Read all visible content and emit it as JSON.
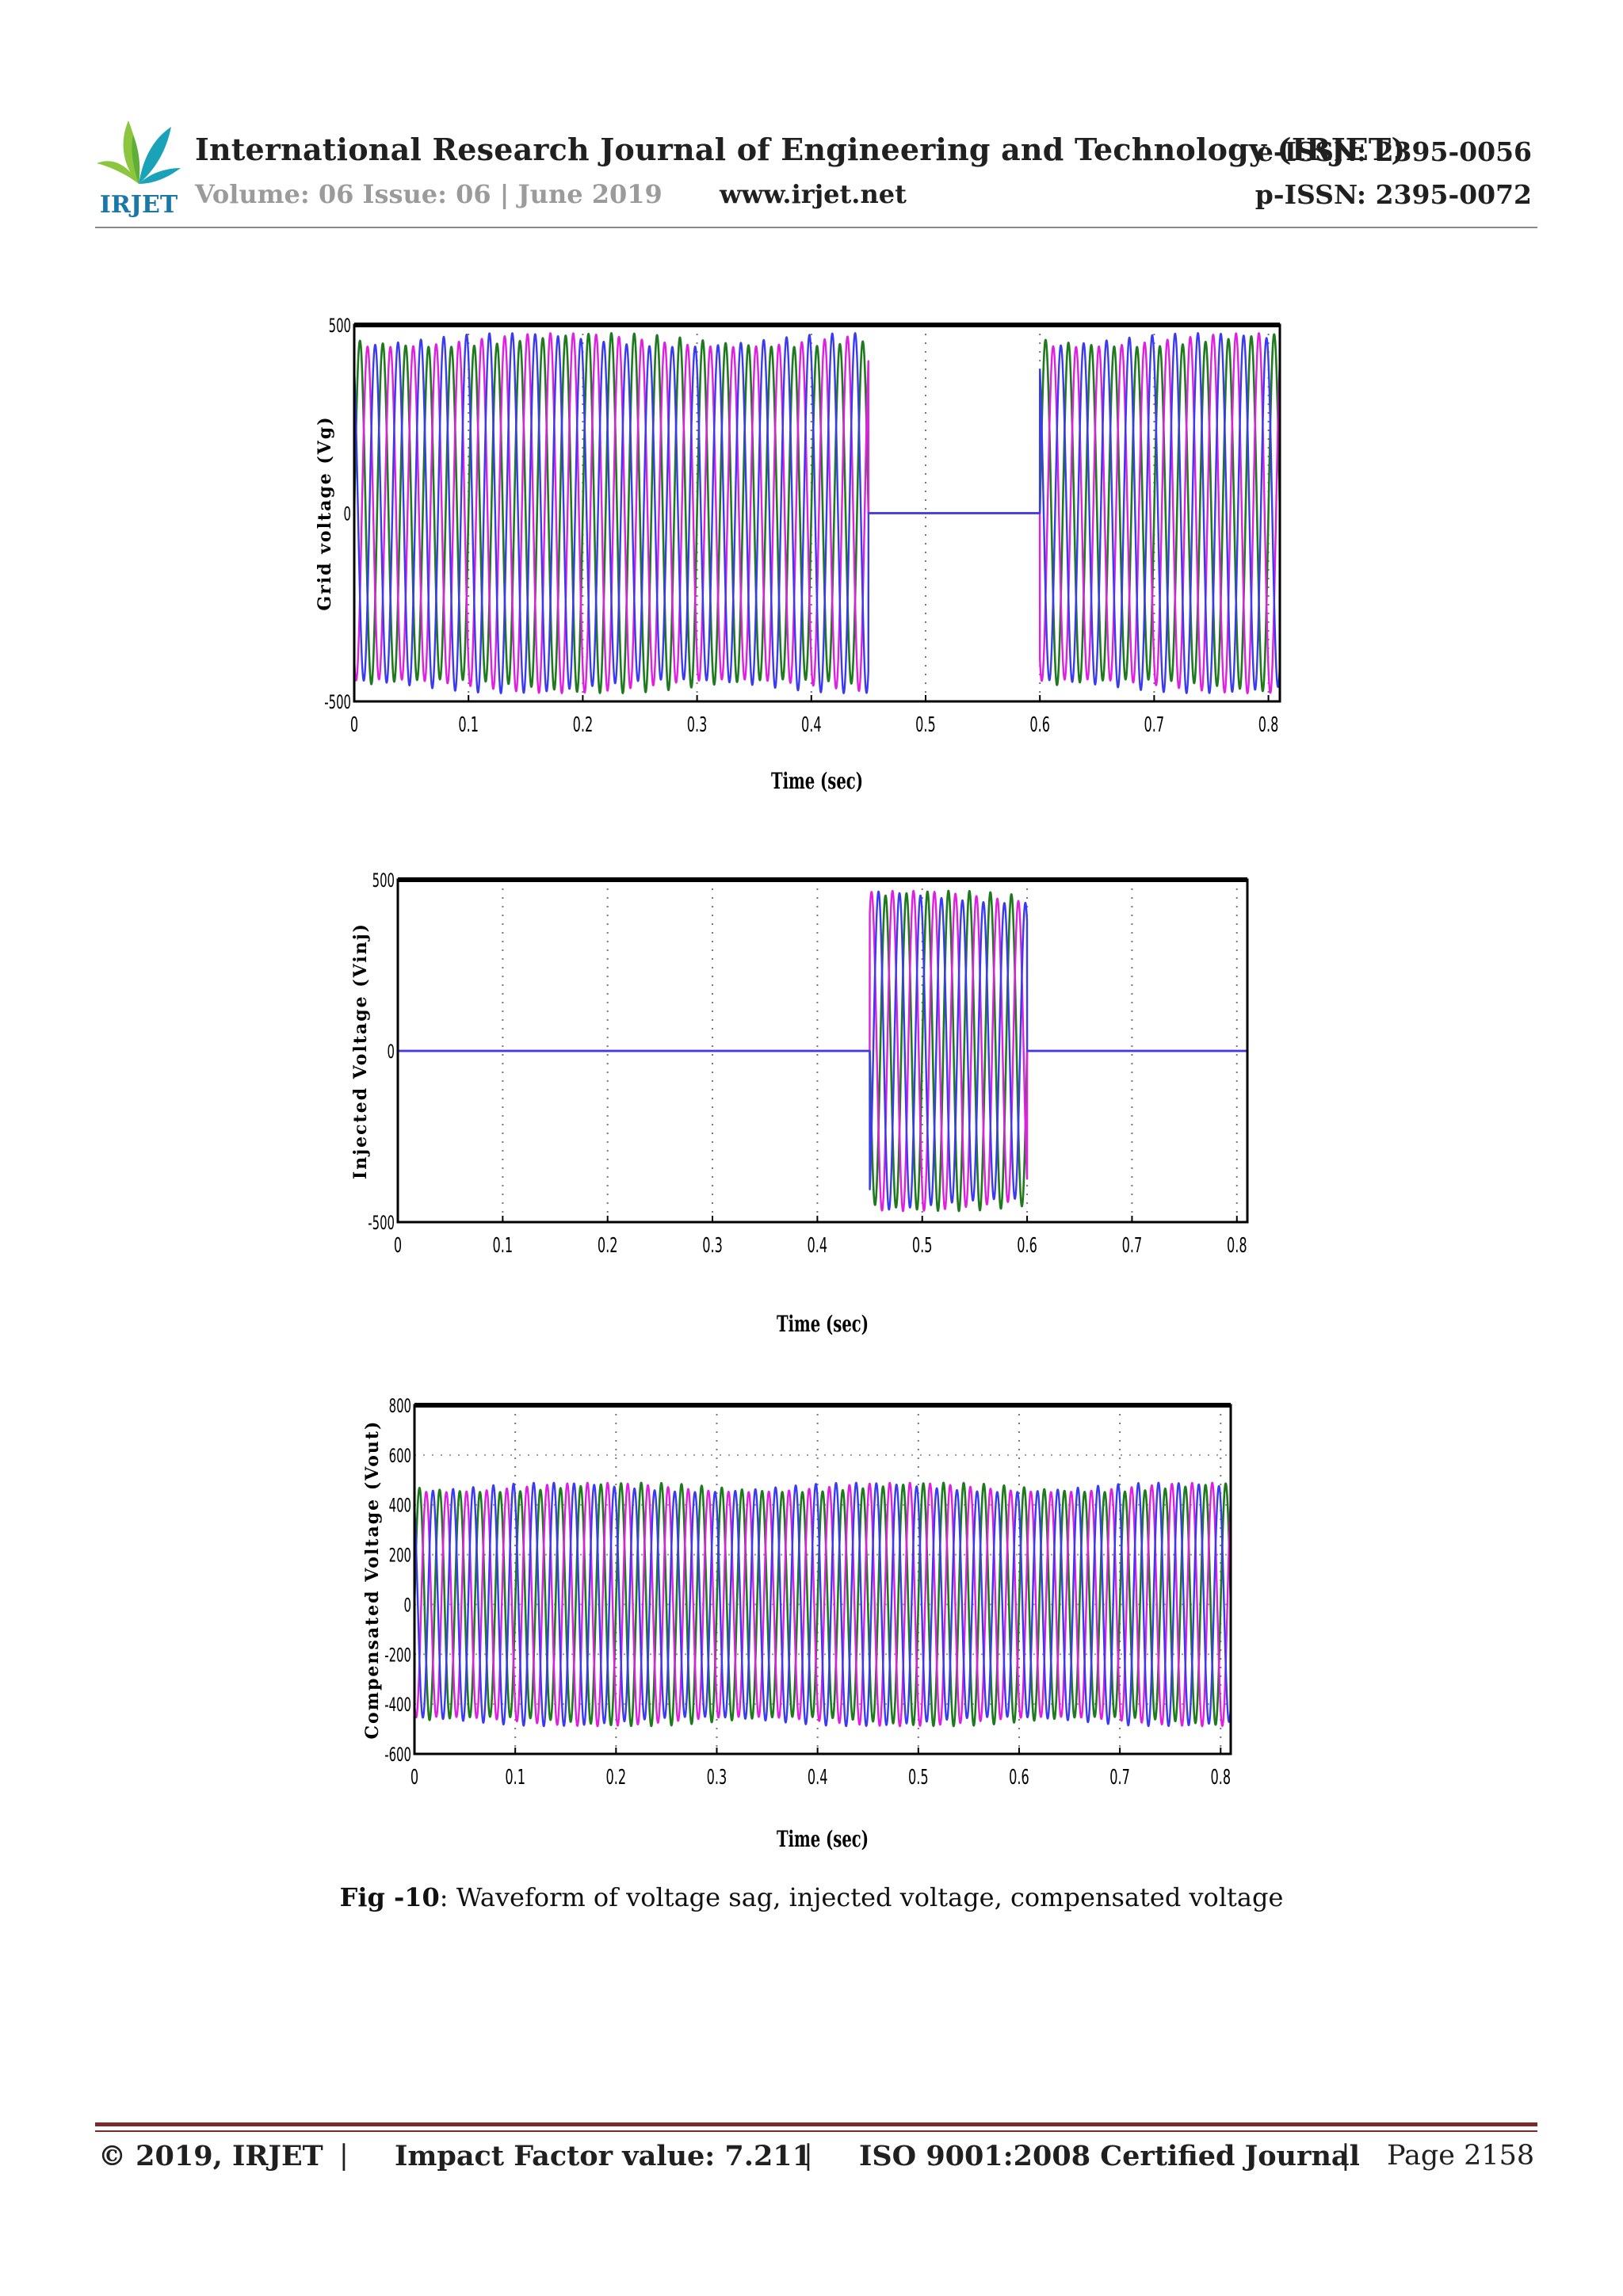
{
  "header": {
    "journal_title": "International Research Journal of Engineering and Technology (IRJET)",
    "volume_line": "Volume: 06 Issue: 06 | June 2019",
    "website": "www.irjet.net",
    "e_issn": "e-ISSN: 2395-0056",
    "p_issn": "p-ISSN: 2395-0072",
    "logo_text": "IRJET",
    "logo_colors": {
      "leaf_green": "#8cc63f",
      "leaf_teal": "#1aa3b8",
      "text": "#1a78a8"
    }
  },
  "chart_data": [
    {
      "type": "line",
      "ylabel": "Grid voltage (Vg)",
      "xlabel": "Time (sec)",
      "xlim": [
        0,
        0.81
      ],
      "ylim": [
        -500,
        500
      ],
      "xticks": [
        "0",
        "0.1",
        "0.2",
        "0.3",
        "0.4",
        "0.5",
        "0.6",
        "0.7",
        "0.8"
      ],
      "yticks": [
        "500",
        "0",
        "-500"
      ],
      "grid": "vertical dotted",
      "frequency_hz": 50,
      "series": [
        {
          "amplitude": 460,
          "segments": [
            [
              0,
              0.45,
              1
            ],
            [
              0.45,
              0.6,
              0
            ],
            [
              0.6,
              0.81,
              1
            ]
          ],
          "color": "#1f7a1f"
        },
        {
          "amplitude": 460,
          "segments": [
            [
              0,
              0.45,
              1
            ],
            [
              0.45,
              0.6,
              0
            ],
            [
              0.6,
              0.81,
              1
            ]
          ],
          "color": "#e020e0"
        },
        {
          "amplitude": 460,
          "segments": [
            [
              0,
              0.45,
              1
            ],
            [
              0.45,
              0.6,
              0
            ],
            [
              0.6,
              0.81,
              1
            ]
          ],
          "color": "#3a3af0"
        }
      ]
    },
    {
      "type": "line",
      "ylabel": "Injected  Voltage (Vinj)",
      "xlabel": "Time (sec)",
      "xlim": [
        0,
        0.81
      ],
      "ylim": [
        -500,
        500
      ],
      "xticks": [
        "0",
        "0.1",
        "0.2",
        "0.3",
        "0.4",
        "0.5",
        "0.6",
        "0.7",
        "0.8"
      ],
      "yticks": [
        "500",
        "0",
        "-500"
      ],
      "grid": "vertical dotted",
      "frequency_hz": 50,
      "series": [
        {
          "amplitude": 450,
          "segments": [
            [
              0,
              0.45,
              0
            ],
            [
              0.45,
              0.6,
              1
            ],
            [
              0.6,
              0.81,
              0
            ]
          ],
          "color": "#1f7a1f"
        },
        {
          "amplitude": 450,
          "segments": [
            [
              0,
              0.45,
              0
            ],
            [
              0.45,
              0.6,
              1
            ],
            [
              0.6,
              0.81,
              0
            ]
          ],
          "color": "#e020e0"
        },
        {
          "amplitude": 450,
          "segments": [
            [
              0,
              0.45,
              0
            ],
            [
              0.45,
              0.6,
              1
            ],
            [
              0.6,
              0.81,
              0
            ]
          ],
          "color": "#3a3af0"
        }
      ]
    },
    {
      "type": "line",
      "ylabel": "Compensated Voltage (Vout)",
      "xlabel": "Time (sec)",
      "xlim": [
        0,
        0.81
      ],
      "ylim": [
        -600,
        800
      ],
      "xticks": [
        "0",
        "0.1",
        "0.2",
        "0.3",
        "0.4",
        "0.5",
        "0.6",
        "0.7",
        "0.8"
      ],
      "yticks": [
        "800",
        "600",
        "400",
        "200",
        "0",
        "-200",
        "-400",
        "-600"
      ],
      "grid": "vertical and horizontal dotted",
      "frequency_hz": 50,
      "series": [
        {
          "amplitude": 470,
          "segments": [
            [
              0,
              0.81,
              1
            ]
          ],
          "color": "#1f7a1f"
        },
        {
          "amplitude": 470,
          "segments": [
            [
              0,
              0.81,
              1
            ]
          ],
          "color": "#e020e0"
        },
        {
          "amplitude": 470,
          "segments": [
            [
              0,
              0.81,
              1
            ]
          ],
          "color": "#3a3af0"
        }
      ]
    }
  ],
  "caption": {
    "label": "Fig -10",
    "text": ": Waveform of voltage sag, injected voltage, compensated voltage"
  },
  "footer": {
    "copyright": "© 2019, IRJET",
    "separator": "|",
    "impact": "Impact Factor value: 7.211",
    "iso": "ISO 9001:2008 Certified Journal",
    "page": "Page 2158"
  }
}
